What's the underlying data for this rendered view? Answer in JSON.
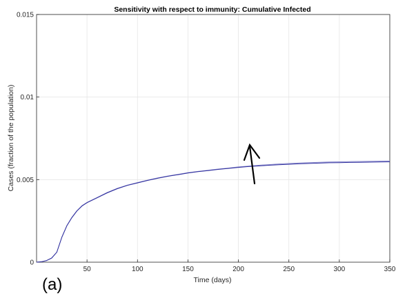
{
  "chart_data": {
    "type": "line",
    "title": "Sensitivity with respect to immunity: Cumulative Infected",
    "xlabel": "Time (days)",
    "ylabel": "Cases (fraction of the population)",
    "panel_label": "(a)",
    "xlim": [
      0,
      350
    ],
    "ylim": [
      0,
      0.015
    ],
    "x_ticks": [
      50,
      100,
      150,
      200,
      250,
      300,
      350
    ],
    "y_ticks": [
      0,
      0.005,
      0.01,
      0.015
    ],
    "grid": true,
    "annotation": "upward arrow indicating increasing curves with increasing immunity",
    "series": [
      {
        "color": "#2c2c9c",
        "x": [
          0,
          5,
          10,
          15,
          20,
          25,
          30,
          35,
          40,
          45,
          50,
          60,
          70,
          80,
          90,
          100,
          110,
          120,
          130,
          140,
          150,
          160,
          170,
          180,
          190,
          200,
          210,
          220,
          230,
          240,
          250,
          260,
          270,
          280,
          290,
          300,
          310,
          320,
          330,
          340,
          350
        ],
        "y": [
          0,
          3e-05,
          0.0001,
          0.00025,
          0.0006,
          0.0015,
          0.0022,
          0.0027,
          0.0031,
          0.0034,
          0.0036,
          0.0039,
          0.0042,
          0.00445,
          0.00465,
          0.0048,
          0.00495,
          0.00508,
          0.0052,
          0.0053,
          0.0054,
          0.00548,
          0.00555,
          0.00562,
          0.00568,
          0.00574,
          0.00579,
          0.00583,
          0.00587,
          0.0059,
          0.00593,
          0.00596,
          0.00598,
          0.006,
          0.00602,
          0.00603,
          0.00604,
          0.00605,
          0.00606,
          0.00607,
          0.00608
        ]
      },
      {
        "color": "#8888cc",
        "x": [
          0,
          5,
          10,
          15,
          20,
          25,
          30,
          35,
          40,
          45,
          50,
          60,
          70,
          80,
          90,
          100,
          110,
          120,
          130,
          140,
          150,
          160,
          170,
          180,
          190,
          200,
          210,
          220,
          230,
          240,
          250,
          260,
          270,
          280,
          290,
          300,
          310,
          320,
          330,
          340,
          350
        ],
        "y": [
          0,
          3e-05,
          0.0001,
          0.00025,
          0.0006,
          0.00152,
          0.00222,
          0.00272,
          0.00312,
          0.00342,
          0.00362,
          0.00392,
          0.00422,
          0.00447,
          0.00467,
          0.00482,
          0.00497,
          0.0051,
          0.00522,
          0.00532,
          0.00542,
          0.0055,
          0.00557,
          0.00564,
          0.0057,
          0.00577,
          0.00582,
          0.00587,
          0.00591,
          0.00595,
          0.00598,
          0.00601,
          0.00603,
          0.00605,
          0.00607,
          0.00608,
          0.00609,
          0.0061,
          0.00611,
          0.00612,
          0.00613
        ]
      }
    ]
  }
}
